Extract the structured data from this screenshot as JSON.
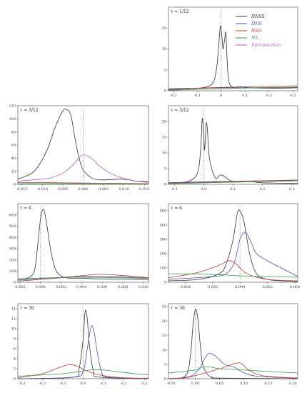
{
  "legend": [
    {
      "label": "DNSS",
      "color": "#333333"
    },
    {
      "label": "DNS",
      "color": "#4b4bb0"
    },
    {
      "label": "NSS",
      "color": "#c0392b"
    },
    {
      "label": "NS",
      "color": "#2e9a4a"
    },
    {
      "label": "Interpolation",
      "color": "#b05bc9"
    }
  ],
  "chart_data": [
    {
      "type": "line",
      "title": "τ = 1/12",
      "xlim": [
        -0.22,
        0.32
      ],
      "ylim": [
        0,
        20
      ],
      "xticks": [
        "-0.2",
        "-0.1",
        "0",
        "0.1",
        "0.2",
        "0.3"
      ],
      "xtickvals": [
        -0.2,
        -0.1,
        0,
        0.1,
        0.2,
        0.3
      ],
      "yticks": [
        "0",
        "5",
        "10",
        "15"
      ],
      "ytickvals": [
        0,
        5,
        10,
        15
      ],
      "vline": 0,
      "series": [
        {
          "name": "DNSS",
          "x": [
            -0.22,
            -0.1,
            -0.04,
            -0.02,
            -0.01,
            -0.003,
            0.003,
            0.008,
            0.015,
            0.02,
            0.03,
            0.05,
            0.08,
            0.12,
            0.2,
            0.32
          ],
          "y": [
            0.3,
            0.6,
            1.5,
            5,
            11,
            15.5,
            13,
            10,
            12.5,
            13.5,
            3,
            0.8,
            1,
            0.7,
            0.6,
            0.7
          ]
        },
        {
          "name": "DNS",
          "x": [
            -0.22,
            0,
            0.32
          ],
          "y": [
            0.5,
            0.7,
            0.8
          ]
        },
        {
          "name": "NSS",
          "x": [
            -0.22,
            0,
            0.32
          ],
          "y": [
            0.2,
            0.8,
            1.2
          ]
        },
        {
          "name": "NS",
          "x": [
            -0.22,
            0,
            0.32
          ],
          "y": [
            0.1,
            0.5,
            0.9
          ]
        }
      ]
    },
    {
      "type": "line",
      "title": "τ = 3/12",
      "xlim": [
        -0.016,
        0.016
      ],
      "ylim": [
        0,
        120
      ],
      "xticks": [
        "-0.015",
        "-0.010",
        "-0.005",
        "0.000",
        "0.005",
        "0.010",
        "0.015"
      ],
      "xtickvals": [
        -0.015,
        -0.01,
        -0.005,
        0,
        0.005,
        0.01,
        0.015
      ],
      "yticks": [
        "0",
        "20",
        "40",
        "60",
        "80",
        "100",
        "120"
      ],
      "ytickvals": [
        0,
        20,
        40,
        60,
        80,
        100,
        120
      ],
      "vline": 0,
      "series": [
        {
          "name": "DNSS",
          "x": [
            -0.016,
            -0.012,
            -0.009,
            -0.007,
            -0.005,
            -0.004,
            -0.003,
            -0.002,
            -0.001,
            0,
            0.002,
            0.004,
            0.006,
            0.009,
            0.011,
            0.013,
            0.016
          ],
          "y": [
            8,
            20,
            50,
            85,
            112,
            114,
            105,
            70,
            40,
            22,
            10,
            7,
            7,
            8,
            7,
            5,
            4
          ]
        },
        {
          "name": "Interpolation",
          "x": [
            -0.016,
            -0.012,
            -0.008,
            -0.005,
            -0.003,
            -0.001,
            0,
            0.002,
            0.004,
            0.007,
            0.01,
            0.013,
            0.016
          ],
          "y": [
            5,
            7,
            10,
            17,
            27,
            40,
            45,
            40,
            28,
            16,
            9,
            5,
            3
          ]
        },
        {
          "name": "NSS",
          "x": [
            -0.016,
            0,
            0.016
          ],
          "y": [
            3,
            2,
            1
          ]
        },
        {
          "name": "NS",
          "x": [
            -0.016,
            0,
            0.016
          ],
          "y": [
            1,
            1,
            0.5
          ]
        }
      ]
    },
    {
      "type": "line",
      "title": "τ = 3/12",
      "xlim": [
        -0.12,
        0.32
      ],
      "ylim": [
        0,
        25
      ],
      "xticks": [
        "-0.1",
        "0.0",
        "0.1",
        "0.2",
        "0.3"
      ],
      "xtickvals": [
        -0.1,
        0,
        0.1,
        0.2,
        0.3
      ],
      "yticks": [
        "0",
        "5",
        "10",
        "15",
        "20"
      ],
      "ytickvals": [
        0,
        5,
        10,
        15,
        20
      ],
      "vline": 0,
      "series": [
        {
          "name": "DNSS",
          "x": [
            -0.12,
            -0.05,
            -0.02,
            -0.01,
            -0.005,
            0,
            0.003,
            0.008,
            0.012,
            0.02,
            0.04,
            0.06,
            0.1,
            0.15,
            0.2,
            0.32
          ],
          "y": [
            0.5,
            1,
            4,
            12,
            21,
            15,
            11,
            19,
            18,
            8,
            2,
            3,
            0.8,
            1,
            0.5,
            0.3
          ]
        },
        {
          "name": "DNS",
          "x": [
            -0.12,
            0.1,
            0.32
          ],
          "y": [
            0.5,
            1,
            1.2
          ]
        },
        {
          "name": "NSS",
          "x": [
            -0.12,
            0.1,
            0.32
          ],
          "y": [
            0.3,
            0.9,
            1.4
          ]
        },
        {
          "name": "NS",
          "x": [
            -0.12,
            0.1,
            0.32
          ],
          "y": [
            0.2,
            0.7,
            1.1
          ]
        }
      ]
    },
    {
      "type": "line",
      "title": "τ = 6",
      "xlim": [
        -0.0022,
        0.0105
      ],
      "ylim": [
        0,
        700
      ],
      "xticks": [
        "-0.002",
        "0.000",
        "0.002",
        "0.004",
        "0.006",
        "0.008",
        "0.010"
      ],
      "xtickvals": [
        -0.002,
        0,
        0.002,
        0.004,
        0.006,
        0.008,
        0.01
      ],
      "yticks": [
        "0",
        "100",
        "200",
        "300",
        "400",
        "500",
        "600"
      ],
      "ytickvals": [
        0,
        100,
        200,
        300,
        400,
        500,
        600
      ],
      "vline": 0,
      "series": [
        {
          "name": "DNSS",
          "x": [
            -0.0022,
            -0.0012,
            -0.0006,
            -0.0003,
            0,
            0.0003,
            0.0006,
            0.001,
            0.0014,
            0.0018,
            0.0025,
            0.004,
            0.006,
            0.0105
          ],
          "y": [
            30,
            40,
            100,
            300,
            560,
            650,
            520,
            280,
            130,
            70,
            40,
            35,
            30,
            25
          ]
        },
        {
          "name": "DNS",
          "x": [
            -0.0022,
            0.004,
            0.0105
          ],
          "y": [
            20,
            50,
            40
          ]
        },
        {
          "name": "NSS",
          "x": [
            -0.0022,
            0.002,
            0.0055,
            0.008,
            0.0105
          ],
          "y": [
            10,
            40,
            70,
            60,
            40
          ]
        },
        {
          "name": "NS",
          "x": [
            -0.0022,
            0.004,
            0.0105
          ],
          "y": [
            30,
            45,
            35
          ]
        }
      ]
    },
    {
      "type": "line",
      "title": "τ = 6",
      "xlim": [
        -0.0052,
        0.0042
      ],
      "ylim": [
        0,
        550
      ],
      "xticks": [
        "-0.004",
        "-0.002",
        "0.000",
        "0.002",
        "0.004"
      ],
      "xtickvals": [
        -0.004,
        -0.002,
        0,
        0.002,
        0.004
      ],
      "yticks": [
        "0",
        "100",
        "200",
        "300",
        "400",
        "500"
      ],
      "ytickvals": [
        0,
        100,
        200,
        300,
        400,
        500
      ],
      "vline": 0,
      "series": [
        {
          "name": "DNSS",
          "x": [
            -0.0052,
            -0.003,
            -0.0015,
            -0.001,
            -0.0005,
            -0.0002,
            0,
            0.0003,
            0.0007,
            0.0012,
            0.002,
            0.003,
            0.0042
          ],
          "y": [
            10,
            20,
            60,
            130,
            300,
            480,
            500,
            420,
            200,
            60,
            20,
            10,
            5
          ]
        },
        {
          "name": "DNS",
          "x": [
            -0.0052,
            -0.002,
            -0.001,
            -0.0004,
            0,
            0.0004,
            0.0008,
            0.0012,
            0.002,
            0.003,
            0.0042
          ],
          "y": [
            20,
            40,
            60,
            140,
            300,
            350,
            280,
            200,
            150,
            100,
            40
          ]
        },
        {
          "name": "NSS",
          "x": [
            -0.0052,
            -0.003,
            -0.0015,
            -0.0008,
            -0.0003,
            0.0005,
            0.002,
            0.0042
          ],
          "y": [
            30,
            70,
            120,
            150,
            130,
            60,
            20,
            10
          ]
        },
        {
          "name": "NS",
          "x": [
            -0.0052,
            -0.002,
            0,
            0.002,
            0.0042
          ],
          "y": [
            60,
            55,
            45,
            40,
            35
          ]
        }
      ]
    },
    {
      "type": "line",
      "title": "τ = 30",
      "xlim": [
        -0.32,
        0.32
      ],
      "ylim": [
        0,
        15
      ],
      "xticks": [
        "-0.3",
        "-0.2",
        "-0.1",
        "0.0",
        "0.1",
        "0.2",
        "0.3"
      ],
      "xtickvals": [
        -0.3,
        -0.2,
        -0.1,
        0,
        0.1,
        0.2,
        0.3
      ],
      "yticks": [
        "0",
        "2",
        "4",
        "6",
        "8",
        "10",
        "12",
        "14"
      ],
      "ytickvals": [
        0,
        2,
        4,
        6,
        8,
        10,
        12,
        14
      ],
      "vline": 0,
      "series": [
        {
          "name": "DNSS",
          "x": [
            -0.32,
            -0.05,
            -0.02,
            0,
            0.01,
            0.02,
            0.03,
            0.05,
            0.08,
            0.32
          ],
          "y": [
            0,
            0.3,
            2,
            8,
            13.5,
            12,
            7,
            1.5,
            0.3,
            0
          ]
        },
        {
          "name": "DNS",
          "x": [
            -0.32,
            -0.05,
            0,
            0.02,
            0.04,
            0.055,
            0.07,
            0.09,
            0.12,
            0.32
          ],
          "y": [
            0,
            0.3,
            1.5,
            6,
            10.5,
            9,
            5,
            1.5,
            0.3,
            0
          ]
        },
        {
          "name": "NSS",
          "x": [
            -0.32,
            -0.2,
            -0.12,
            -0.07,
            -0.03,
            0.02,
            0.1,
            0.2,
            0.32
          ],
          "y": [
            0.2,
            1,
            2.2,
            2.8,
            2.5,
            1.5,
            0.6,
            0.2,
            0.1
          ]
        },
        {
          "name": "NS",
          "x": [
            -0.32,
            -0.1,
            0.05,
            0.15,
            0.25,
            0.32
          ],
          "y": [
            0.5,
            1,
            1.8,
            1.5,
            1,
            0.8
          ]
        }
      ]
    },
    {
      "type": "line",
      "title": "τ = 30",
      "xlim": [
        -0.055,
        0.21
      ],
      "ylim": [
        0,
        26
      ],
      "xticks": [
        "-0.05",
        "0.00",
        "0.05",
        "0.10",
        "0.15",
        "0.20"
      ],
      "xtickvals": [
        -0.05,
        0,
        0.05,
        0.1,
        0.15,
        0.2
      ],
      "yticks": [
        "0",
        "5",
        "10",
        "15",
        "20",
        "25"
      ],
      "ytickvals": [
        0,
        5,
        10,
        15,
        20,
        25
      ],
      "vline": 0,
      "series": [
        {
          "name": "DNSS",
          "x": [
            -0.055,
            -0.02,
            -0.01,
            -0.005,
            0,
            0.005,
            0.01,
            0.015,
            0.025,
            0.035,
            0.05,
            0.21
          ],
          "y": [
            0,
            1,
            8,
            18,
            24,
            21,
            12,
            5,
            1.5,
            0.5,
            0.2,
            0
          ]
        },
        {
          "name": "DNS",
          "x": [
            -0.055,
            -0.01,
            0.01,
            0.025,
            0.04,
            0.06,
            0.08,
            0.1,
            0.13,
            0.21
          ],
          "y": [
            0,
            0.8,
            4,
            8.5,
            8,
            5,
            4,
            2,
            0.8,
            0.2
          ]
        },
        {
          "name": "NSS",
          "x": [
            -0.055,
            -0.02,
            0.02,
            0.06,
            0.09,
            0.11,
            0.14,
            0.21
          ],
          "y": [
            0.1,
            0.3,
            2,
            4,
            5.5,
            3,
            1,
            0.2
          ]
        },
        {
          "name": "NS",
          "x": [
            -0.055,
            0,
            0.02,
            0.05,
            0.1,
            0.15,
            0.21
          ],
          "y": [
            2,
            3,
            4.2,
            3.5,
            3,
            2.5,
            2
          ]
        }
      ]
    }
  ]
}
